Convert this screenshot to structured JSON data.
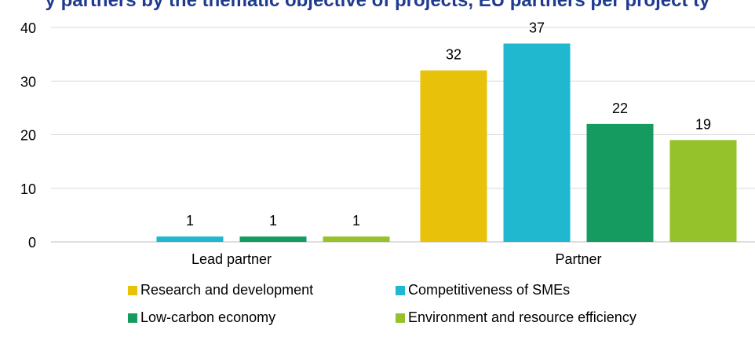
{
  "chart_data": {
    "type": "bar",
    "title": "y partners by the thematic objective of projects, EU partners per project ty",
    "categories": [
      "Lead partner",
      "Partner"
    ],
    "series": [
      {
        "name": "Research and development",
        "color": "#e8c20a",
        "values": [
          0,
          32
        ]
      },
      {
        "name": "Competitiveness of SMEs",
        "color": "#1fb8cf",
        "values": [
          1,
          37
        ]
      },
      {
        "name": "Low-carbon economy",
        "color": "#159a5f",
        "values": [
          1,
          22
        ]
      },
      {
        "name": "Environment and resource efficiency",
        "color": "#95c12b",
        "values": [
          1,
          19
        ]
      }
    ],
    "data_labels": [
      [
        "",
        "32"
      ],
      [
        "1",
        "37"
      ],
      [
        "1",
        "22"
      ],
      [
        "1",
        "19"
      ]
    ],
    "ylim": [
      0,
      40
    ],
    "yticks": [
      "0",
      "10",
      "20",
      "30",
      "40"
    ],
    "grid": "horizontal",
    "legend_position": "bottom",
    "legend_columns": 2
  }
}
